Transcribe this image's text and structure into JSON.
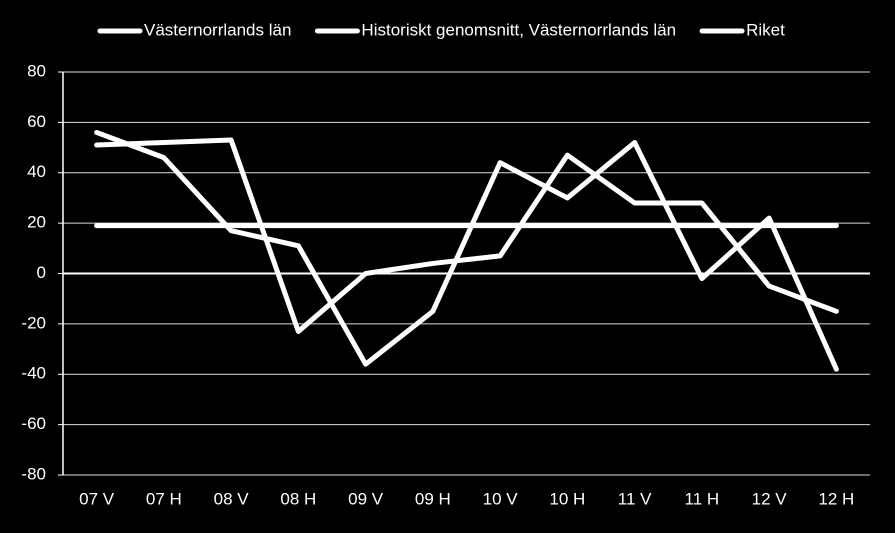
{
  "chart_data": {
    "type": "line",
    "categories": [
      "07 V",
      "07 H",
      "08 V",
      "08 H",
      "09 V",
      "09 H",
      "10 V",
      "10 H",
      "11 V",
      "11 H",
      "12 V",
      "12 H"
    ],
    "series": [
      {
        "name": "Västernorrlands län",
        "color": "#ffffff",
        "values": [
          56,
          46,
          17,
          11,
          -36,
          -15,
          44,
          30,
          52,
          -2,
          22,
          -38
        ]
      },
      {
        "name": "Historiskt genomsnitt, Västernorrlands län",
        "color": "#ffffff",
        "values": [
          19,
          19,
          19,
          19,
          19,
          19,
          19,
          19,
          19,
          19,
          19,
          19
        ]
      },
      {
        "name": "Riket",
        "color": "#ffffff",
        "values": [
          51,
          52,
          53,
          -23,
          0,
          4,
          7,
          47,
          28,
          28,
          -5,
          -15
        ]
      }
    ],
    "ylim": [
      -80,
      80
    ],
    "yticks": [
      -80,
      -60,
      -40,
      -20,
      0,
      20,
      40,
      60,
      80
    ],
    "grid": true,
    "legend": "top"
  }
}
